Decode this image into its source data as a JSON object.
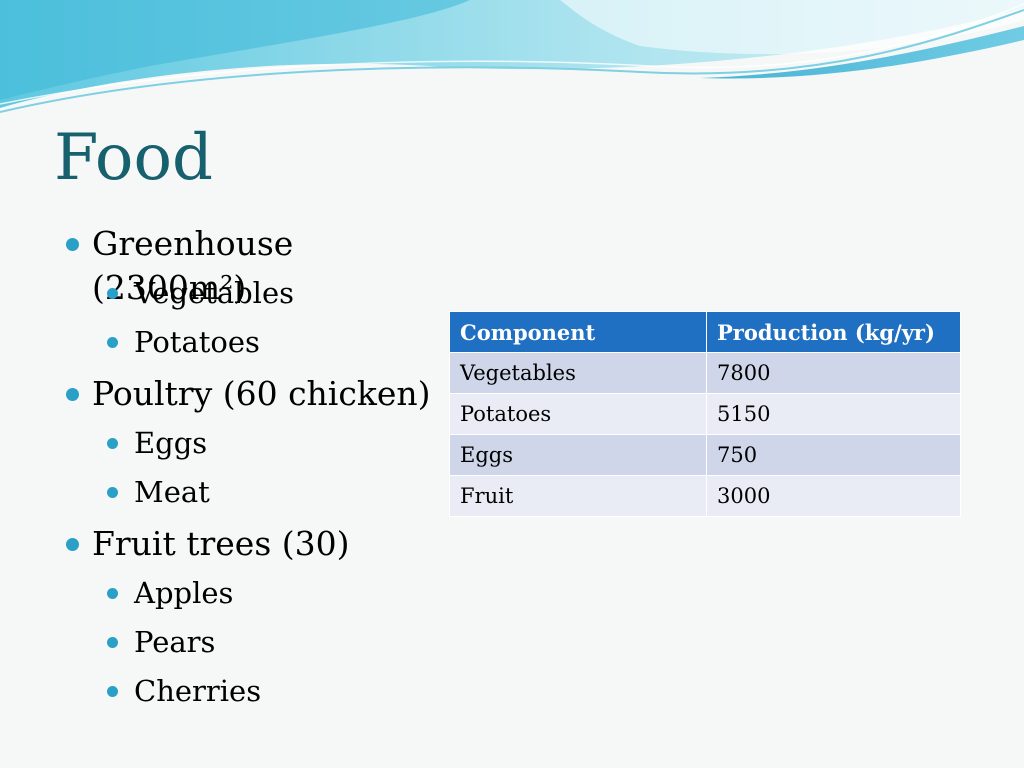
{
  "slide": {
    "title": "Food",
    "bullets": [
      {
        "label": "Greenhouse (2300m²)",
        "children": [
          "Vegetables",
          "Potatoes"
        ]
      },
      {
        "label": "Poultry (60 chicken)",
        "children": [
          "Eggs",
          "Meat"
        ]
      },
      {
        "label": "Fruit trees (30)",
        "children": [
          "Apples",
          "Pears",
          "Cherries"
        ]
      }
    ]
  },
  "table": {
    "headers": [
      "Component",
      "Production (kg/yr)"
    ],
    "rows": [
      [
        "Vegetables",
        "7800"
      ],
      [
        "Potatoes",
        "5150"
      ],
      [
        "Eggs",
        "750"
      ],
      [
        "Fruit",
        "3000"
      ]
    ]
  },
  "colors": {
    "title": "#17606e",
    "bullet": "#2aa0c6",
    "header_bg": "#1f6fc2",
    "row_odd": "#cfd6e9",
    "row_even": "#e9ecf4"
  }
}
